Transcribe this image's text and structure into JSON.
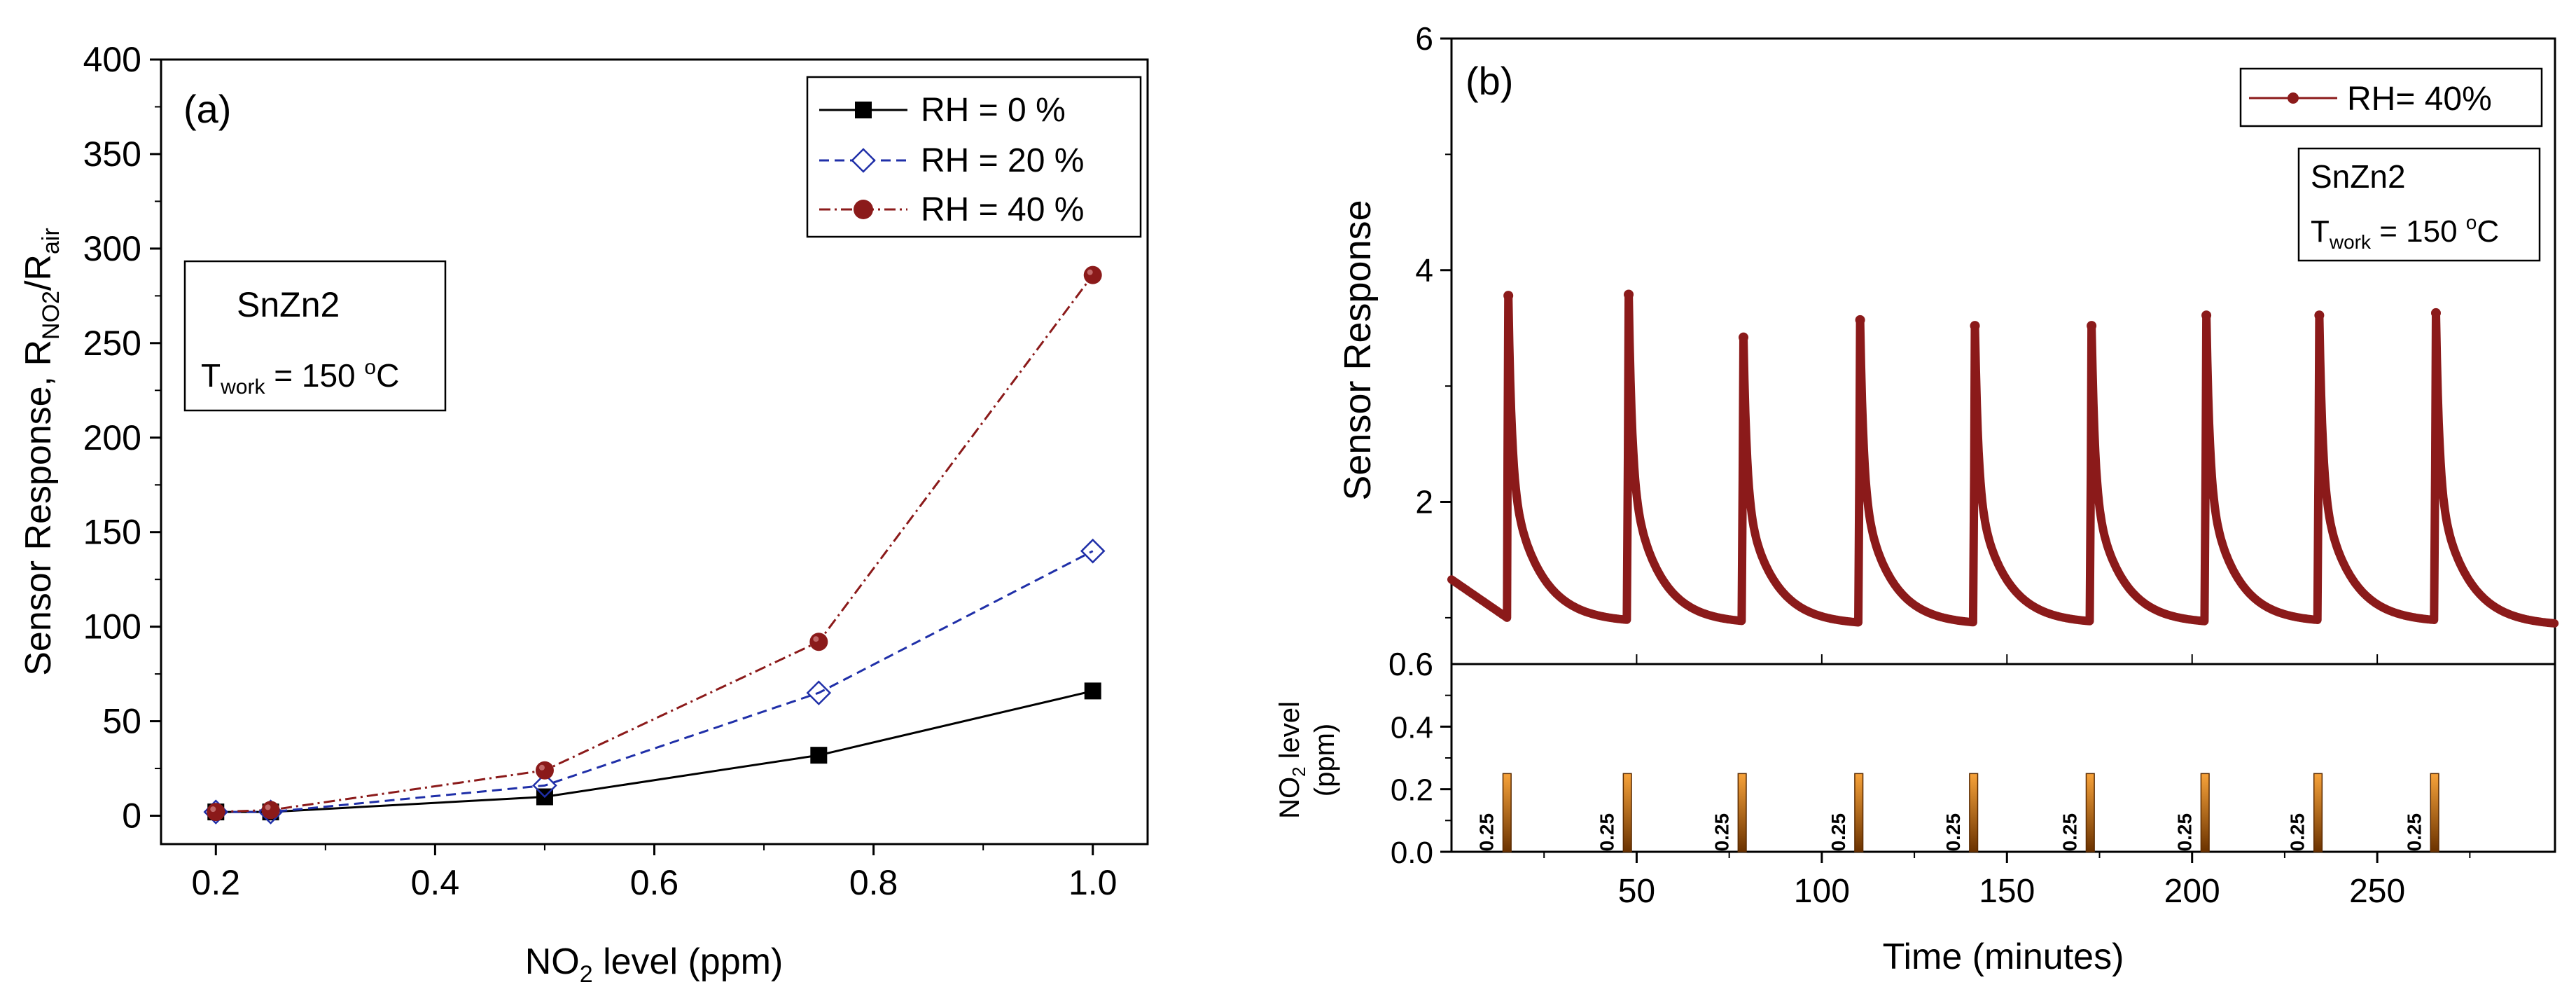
{
  "chart_data": [
    {
      "type": "line",
      "panel_label": "(a)",
      "xlabel": "NO2 level (ppm)",
      "xlabel_parts": {
        "base": "NO",
        "sub": "2",
        "rest": " level (ppm)"
      },
      "ylabel": "Sensor Response, RNO2/Rair",
      "ylabel_parts": {
        "base": "Sensor Response, R",
        "sub1": "NO2",
        "mid": "/R",
        "sub2": "air"
      },
      "xlim": [
        0.15,
        1.05
      ],
      "ylim": [
        -15,
        400
      ],
      "xticks": [
        0.2,
        0.4,
        0.6,
        0.8,
        1.0
      ],
      "xtick_labels": [
        "0.2",
        "0.4",
        "0.6",
        "0.8",
        "1.0"
      ],
      "yticks": [
        0,
        50,
        100,
        150,
        200,
        250,
        300,
        350,
        400
      ],
      "ytick_labels": [
        "0",
        "50",
        "100",
        "150",
        "200",
        "250",
        "300",
        "350",
        "400"
      ],
      "categories": [
        0.2,
        0.25,
        0.5,
        0.75,
        1.0
      ],
      "series": [
        {
          "name": "RH = 0 %",
          "values": [
            2,
            2,
            10,
            32,
            66
          ],
          "color": "#000000",
          "marker": "square",
          "line": "solid"
        },
        {
          "name": "RH = 20 %",
          "values": [
            2,
            2,
            16,
            65,
            140
          ],
          "color": "#1f2fa8",
          "marker": "diamond-open",
          "line": "dashed"
        },
        {
          "name": "RH = 40 %",
          "values": [
            2,
            3,
            24,
            92,
            286
          ],
          "color": "#8b1a1a",
          "marker": "circle",
          "line": "dashdot"
        }
      ],
      "legend": "top-right",
      "annotation": {
        "title": "SnZn2",
        "line_base": "T",
        "line_sub": "work",
        "line_mid": " = 150 ",
        "line_sup": "o",
        "line_end": "C"
      }
    },
    {
      "type": "line",
      "panel_label": "(b)",
      "xlabel": "Time (minutes)",
      "ylabel": "Sensor Response",
      "xlim": [
        0,
        298
      ],
      "ylim": [
        0.6,
        6
      ],
      "xticks": [
        50,
        100,
        150,
        200,
        250
      ],
      "xtick_labels": [
        "50",
        "100",
        "150",
        "200",
        "250"
      ],
      "yticks": [
        2,
        4,
        6
      ],
      "ytick_labels": [
        "2",
        "4",
        "6"
      ],
      "bottom_tick_label": "0.6",
      "series": [
        {
          "name": "RH= 40%",
          "color": "#8b1a1a",
          "marker": "circle",
          "start": {
            "x": 0,
            "y": 1.33
          },
          "baseline_before_first_pulse": 1.0,
          "pulses": [
            {
              "x": 15,
              "peak": 3.78,
              "end_baseline": 0.96
            },
            {
              "x": 47.5,
              "peak": 3.79,
              "end_baseline": 0.95
            },
            {
              "x": 78.5,
              "peak": 3.42,
              "end_baseline": 0.94
            },
            {
              "x": 110,
              "peak": 3.57,
              "end_baseline": 0.94
            },
            {
              "x": 141,
              "peak": 3.52,
              "end_baseline": 0.95
            },
            {
              "x": 172.5,
              "peak": 3.52,
              "end_baseline": 0.95
            },
            {
              "x": 203.5,
              "peak": 3.61,
              "end_baseline": 0.96
            },
            {
              "x": 234,
              "peak": 3.61,
              "end_baseline": 0.96
            },
            {
              "x": 265.5,
              "peak": 3.63,
              "end_baseline": 0.95
            }
          ],
          "final_value": 0.93
        }
      ],
      "legend": "top-right",
      "annotation": {
        "title": "SnZn2",
        "line_base": "T",
        "line_sub": "work",
        "line_mid": " = 150 ",
        "line_sup": "o",
        "line_end": "C"
      },
      "subpanel": {
        "type": "bar",
        "ylabel_parts": {
          "base": "NO",
          "sub": "2",
          "rest": " level",
          "line2": "(ppm)"
        },
        "ylim": [
          0,
          0.6
        ],
        "yticks": [
          0.0,
          0.2,
          0.4
        ],
        "ytick_labels": [
          "0.0",
          "0.2",
          "0.4"
        ],
        "bar_color": "#f0901e",
        "bar_width_minutes": 2.2,
        "bars": [
          {
            "x": 15,
            "value": 0.25,
            "label": "0.25"
          },
          {
            "x": 47.5,
            "value": 0.25,
            "label": "0.25"
          },
          {
            "x": 78.5,
            "value": 0.25,
            "label": "0.25"
          },
          {
            "x": 110,
            "value": 0.25,
            "label": "0.25"
          },
          {
            "x": 141,
            "value": 0.25,
            "label": "0.25"
          },
          {
            "x": 172.5,
            "value": 0.25,
            "label": "0.25"
          },
          {
            "x": 203.5,
            "value": 0.25,
            "label": "0.25"
          },
          {
            "x": 234,
            "value": 0.25,
            "label": "0.25"
          },
          {
            "x": 265.5,
            "value": 0.25,
            "label": "0.25"
          }
        ]
      }
    }
  ]
}
